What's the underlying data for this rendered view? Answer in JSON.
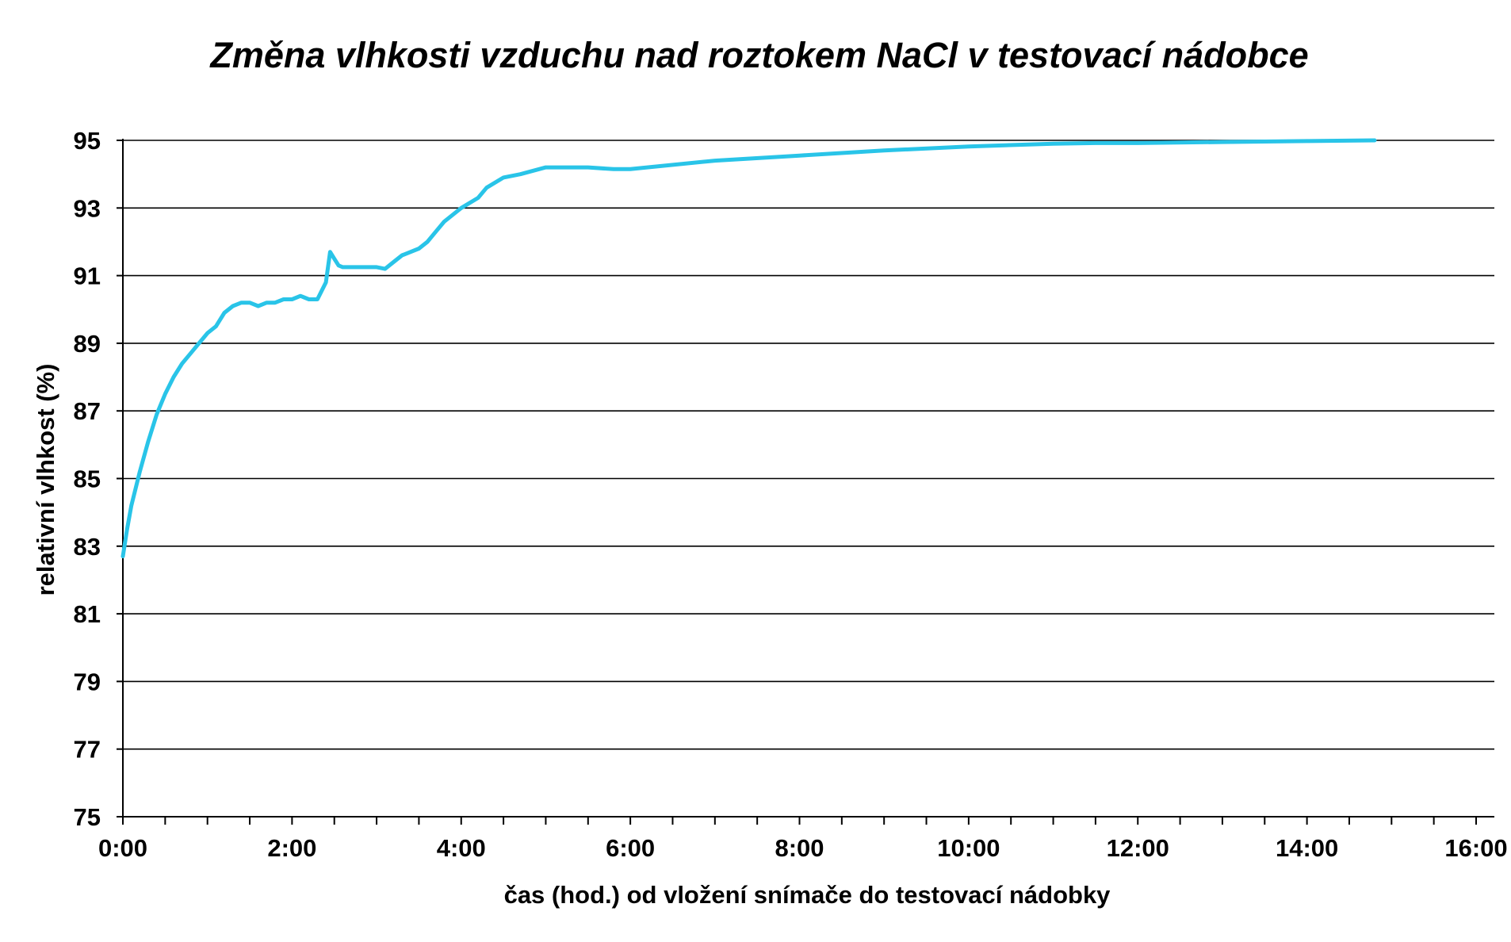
{
  "chart_data": {
    "type": "line",
    "title": "Změna vlhkosti vzduchu nad roztokem NaCl v testovací nádobce",
    "xlabel": "čas (hod.) od vložení snímače do testovací nádobky",
    "ylabel": "relativní vlhkost (%)",
    "xlim": [
      0,
      16
    ],
    "ylim": [
      75,
      95
    ],
    "x_ticks": [
      0,
      2,
      4,
      6,
      8,
      10,
      12,
      14,
      16
    ],
    "x_tick_labels": [
      "0:00",
      "2:00",
      "4:00",
      "6:00",
      "8:00",
      "10:00",
      "12:00",
      "14:00",
      "16:00"
    ],
    "x_minor_step": 0.5,
    "y_ticks": [
      75,
      77,
      79,
      81,
      83,
      85,
      87,
      89,
      91,
      93,
      95
    ],
    "y_tick_labels": [
      "75",
      "77",
      "79",
      "81",
      "83",
      "85",
      "87",
      "89",
      "91",
      "93",
      "95"
    ],
    "grid": "horizontal",
    "legend": "none",
    "series": [
      {
        "color": "#29C4E8",
        "x": [
          0.0,
          0.05,
          0.1,
          0.2,
          0.3,
          0.4,
          0.5,
          0.6,
          0.7,
          0.8,
          0.9,
          1.0,
          1.1,
          1.2,
          1.3,
          1.4,
          1.5,
          1.6,
          1.7,
          1.8,
          1.9,
          2.0,
          2.1,
          2.2,
          2.3,
          2.4,
          2.45,
          2.5,
          2.55,
          2.6,
          2.8,
          3.0,
          3.1,
          3.2,
          3.3,
          3.5,
          3.6,
          3.7,
          3.8,
          4.0,
          4.2,
          4.3,
          4.5,
          4.7,
          5.0,
          5.5,
          5.8,
          6.0,
          7.0,
          8.0,
          9.0,
          10.0,
          11.0,
          11.5,
          12.0,
          13.0,
          14.0,
          14.8
        ],
        "y": [
          82.7,
          83.5,
          84.2,
          85.2,
          86.1,
          86.9,
          87.5,
          88.0,
          88.4,
          88.7,
          89.0,
          89.3,
          89.5,
          89.9,
          90.1,
          90.2,
          90.2,
          90.1,
          90.2,
          90.2,
          90.3,
          90.3,
          90.4,
          90.3,
          90.3,
          90.8,
          91.7,
          91.5,
          91.3,
          91.25,
          91.25,
          91.25,
          91.2,
          91.4,
          91.6,
          91.8,
          92.0,
          92.3,
          92.6,
          93.0,
          93.3,
          93.6,
          93.9,
          94.0,
          94.2,
          94.2,
          94.15,
          94.15,
          94.4,
          94.55,
          94.7,
          94.82,
          94.9,
          94.92,
          94.92,
          94.95,
          94.98,
          95.0
        ]
      }
    ]
  }
}
